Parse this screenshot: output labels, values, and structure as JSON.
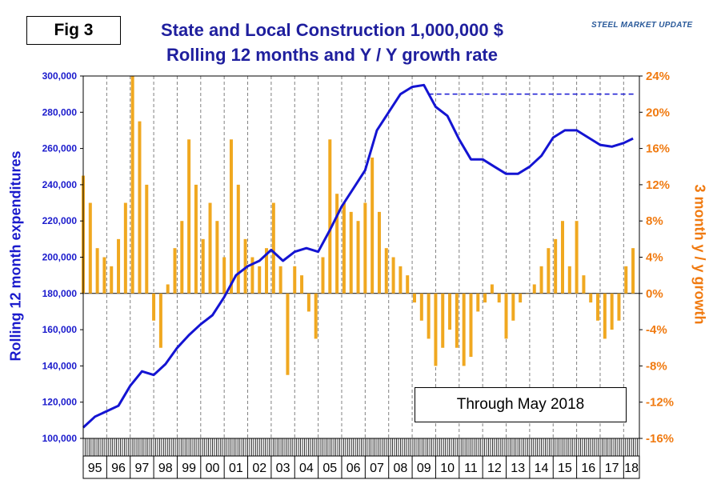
{
  "figure_label": "Fig 3",
  "title_line1": "State and Local Construction 1,000,000 $",
  "title_line2": "Rolling 12 months and Y / Y growth rate",
  "logo_text": "STEEL MARKET UPDATE",
  "annotation": "Through May 2018",
  "colors": {
    "line": "#1414d2",
    "bars": "#f0a820",
    "left_axis": "#1a1acc",
    "right_axis": "#f07a10",
    "title": "#1f1f9e"
  },
  "chart_data": {
    "type": "bar+line",
    "ylabel_left": "Rolling 12 month expenditures",
    "ylabel_right": "3 month y / y growth",
    "ylim_left": [
      100000,
      300000
    ],
    "ylim_right": [
      -16,
      24
    ],
    "yticks_left": [
      "100,000",
      "120,000",
      "140,000",
      "160,000",
      "180,000",
      "200,000",
      "220,000",
      "240,000",
      "260,000",
      "280,000",
      "300,000"
    ],
    "yticks_right": [
      "-16%",
      "-12%",
      "-8%",
      "-4%",
      "0%",
      "4%",
      "8%",
      "12%",
      "16%",
      "20%",
      "24%"
    ],
    "x_labels": [
      "95",
      "96",
      "97",
      "98",
      "99",
      "00",
      "01",
      "02",
      "03",
      "04",
      "05",
      "06",
      "07",
      "08",
      "09",
      "10",
      "11",
      "12",
      "13",
      "14",
      "15",
      "16",
      "17",
      "18"
    ],
    "x_range": [
      1995.0,
      2018.67
    ],
    "reference_line": {
      "value": 290000,
      "from_x": 2009.7,
      "to_x": 2018.5,
      "style": "dashed"
    },
    "series": [
      {
        "name": "Rolling 12 month expenditures",
        "axis": "left",
        "type": "line",
        "x": [
          1995.0,
          1995.5,
          1996.0,
          1996.5,
          1997.0,
          1997.5,
          1998.0,
          1998.5,
          1999.0,
          1999.5,
          2000.0,
          2000.5,
          2001.0,
          2001.5,
          2002.0,
          2002.5,
          2003.0,
          2003.5,
          2004.0,
          2004.5,
          2005.0,
          2005.5,
          2006.0,
          2006.5,
          2007.0,
          2007.5,
          2008.0,
          2008.5,
          2009.0,
          2009.5,
          2010.0,
          2010.5,
          2011.0,
          2011.5,
          2012.0,
          2012.5,
          2013.0,
          2013.5,
          2014.0,
          2014.5,
          2015.0,
          2015.5,
          2016.0,
          2016.5,
          2017.0,
          2017.5,
          2018.0,
          2018.4
        ],
        "values": [
          106000,
          112000,
          115000,
          118000,
          129000,
          137000,
          135000,
          141000,
          150000,
          157000,
          163000,
          168000,
          178000,
          190000,
          195000,
          198000,
          204000,
          198000,
          203000,
          205000,
          203000,
          215000,
          228000,
          238000,
          248000,
          270000,
          280000,
          290000,
          294000,
          295000,
          283000,
          278000,
          265000,
          254000,
          254000,
          250000,
          246000,
          246000,
          250000,
          256000,
          266000,
          270000,
          270000,
          266000,
          262000,
          261000,
          263000,
          265500
        ]
      },
      {
        "name": "3 month y/y growth",
        "axis": "right",
        "type": "bar",
        "x": [
          1995.0,
          1995.3,
          1995.6,
          1995.9,
          1996.2,
          1996.5,
          1996.8,
          1997.1,
          1997.4,
          1997.7,
          1998.0,
          1998.3,
          1998.6,
          1998.9,
          1999.2,
          1999.5,
          1999.8,
          2000.1,
          2000.4,
          2000.7,
          2001.0,
          2001.3,
          2001.6,
          2001.9,
          2002.2,
          2002.5,
          2002.8,
          2003.1,
          2003.4,
          2003.7,
          2004.0,
          2004.3,
          2004.6,
          2004.9,
          2005.2,
          2005.5,
          2005.8,
          2006.1,
          2006.4,
          2006.7,
          2007.0,
          2007.3,
          2007.6,
          2007.9,
          2008.2,
          2008.5,
          2008.8,
          2009.1,
          2009.4,
          2009.7,
          2010.0,
          2010.3,
          2010.6,
          2010.9,
          2011.2,
          2011.5,
          2011.8,
          2012.1,
          2012.4,
          2012.7,
          2013.0,
          2013.3,
          2013.6,
          2013.9,
          2014.2,
          2014.5,
          2014.8,
          2015.1,
          2015.4,
          2015.7,
          2016.0,
          2016.3,
          2016.6,
          2016.9,
          2017.2,
          2017.5,
          2017.8,
          2018.1,
          2018.4
        ],
        "values": [
          13.0,
          10.0,
          5.0,
          4.0,
          3.0,
          6.0,
          10.0,
          24.0,
          19.0,
          12.0,
          -3.0,
          -6.0,
          1.0,
          5.0,
          8.0,
          17.0,
          12.0,
          6.0,
          10.0,
          8.0,
          4.0,
          17.0,
          12.0,
          6.0,
          4.0,
          3.0,
          5.0,
          10.0,
          3.0,
          -9.0,
          3.0,
          2.0,
          -2.0,
          -5.0,
          4.0,
          17.0,
          11.0,
          10.0,
          9.0,
          8.0,
          10.0,
          15.0,
          9.0,
          5.0,
          4.0,
          3.0,
          2.0,
          -1.0,
          -3.0,
          -5.0,
          -8.0,
          -6.0,
          -4.0,
          -6.0,
          -8.0,
          -7.0,
          -2.0,
          -1.0,
          1.0,
          -1.0,
          -5.0,
          -3.0,
          -1.0,
          0.0,
          1.0,
          3.0,
          5.0,
          6.0,
          8.0,
          3.0,
          8.0,
          2.0,
          -1.0,
          -3.0,
          -5.0,
          -4.0,
          -3.0,
          3.0,
          5.0
        ]
      }
    ]
  }
}
